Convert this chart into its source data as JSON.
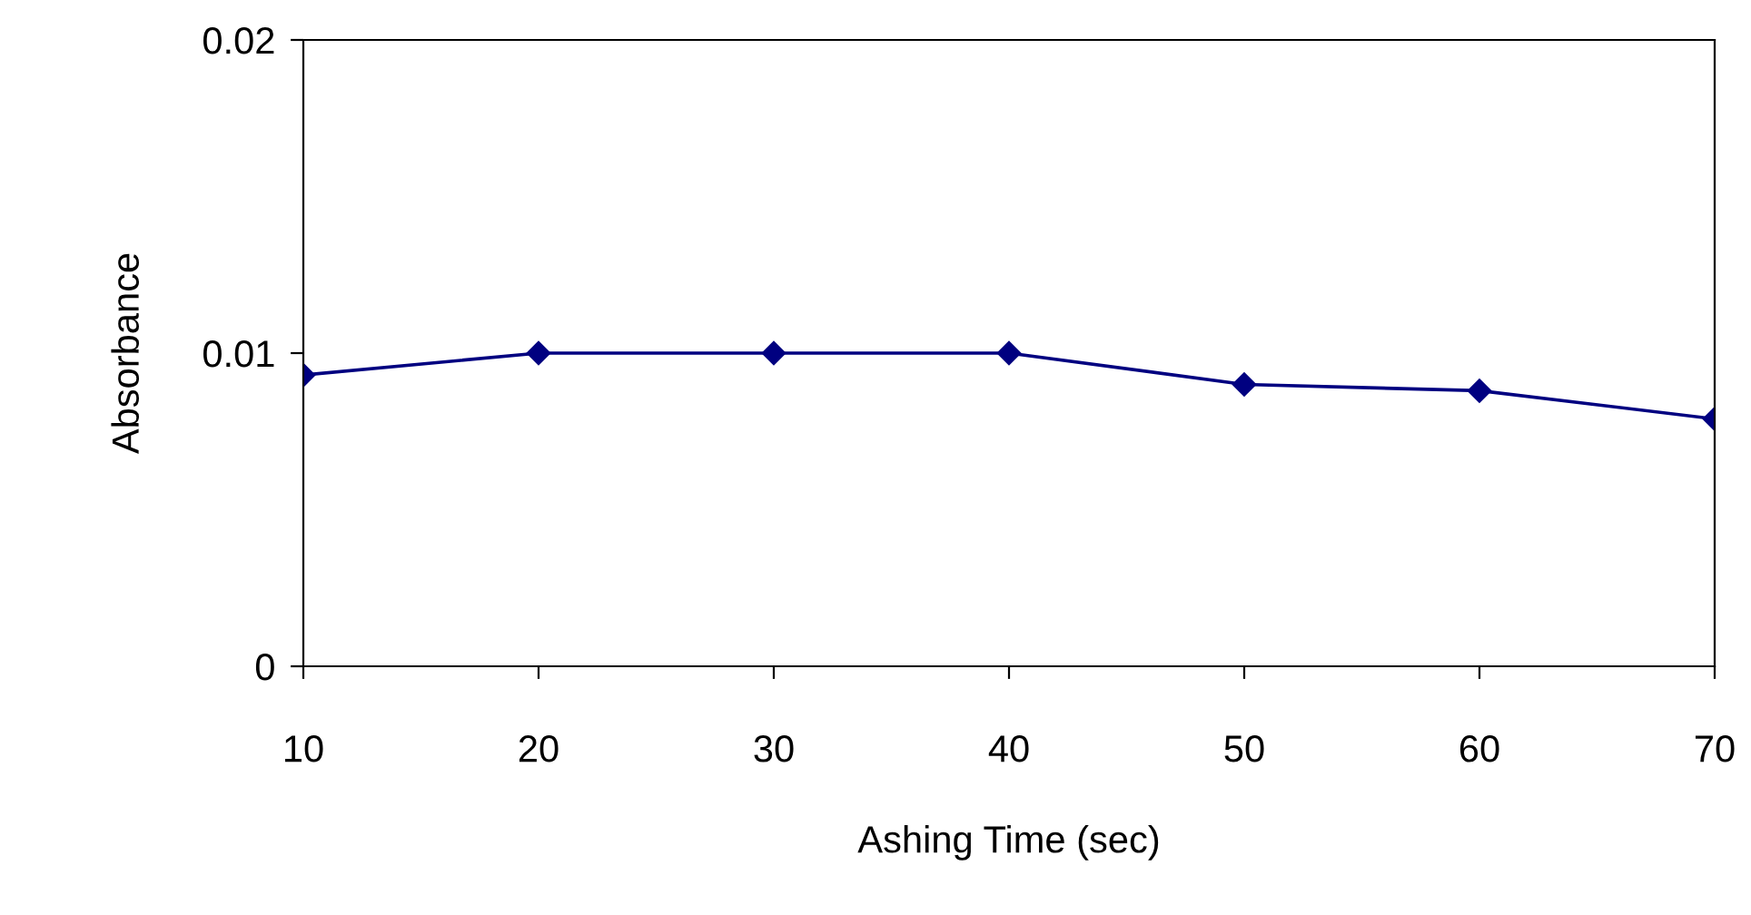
{
  "chart_data": {
    "type": "line",
    "xlabel": "Ashing Time (sec)",
    "ylabel": "Absorbance",
    "x": [
      10,
      20,
      30,
      40,
      50,
      60,
      70
    ],
    "series": [
      {
        "color": "#000080",
        "values": [
          0.0093,
          0.01,
          0.01,
          0.01,
          0.009,
          0.0088,
          0.0079
        ]
      }
    ],
    "xlim": [
      10,
      70
    ],
    "xticks": [
      10,
      20,
      30,
      40,
      50,
      60,
      70
    ],
    "ylim": [
      0,
      0.02
    ],
    "yticks": [
      0,
      {
        "value": 0.01,
        "label": "0.01"
      },
      {
        "value": 0.02,
        "label": "0.02"
      }
    ],
    "grid": false,
    "legend": false,
    "marker": "diamond",
    "line_style": "solid"
  }
}
